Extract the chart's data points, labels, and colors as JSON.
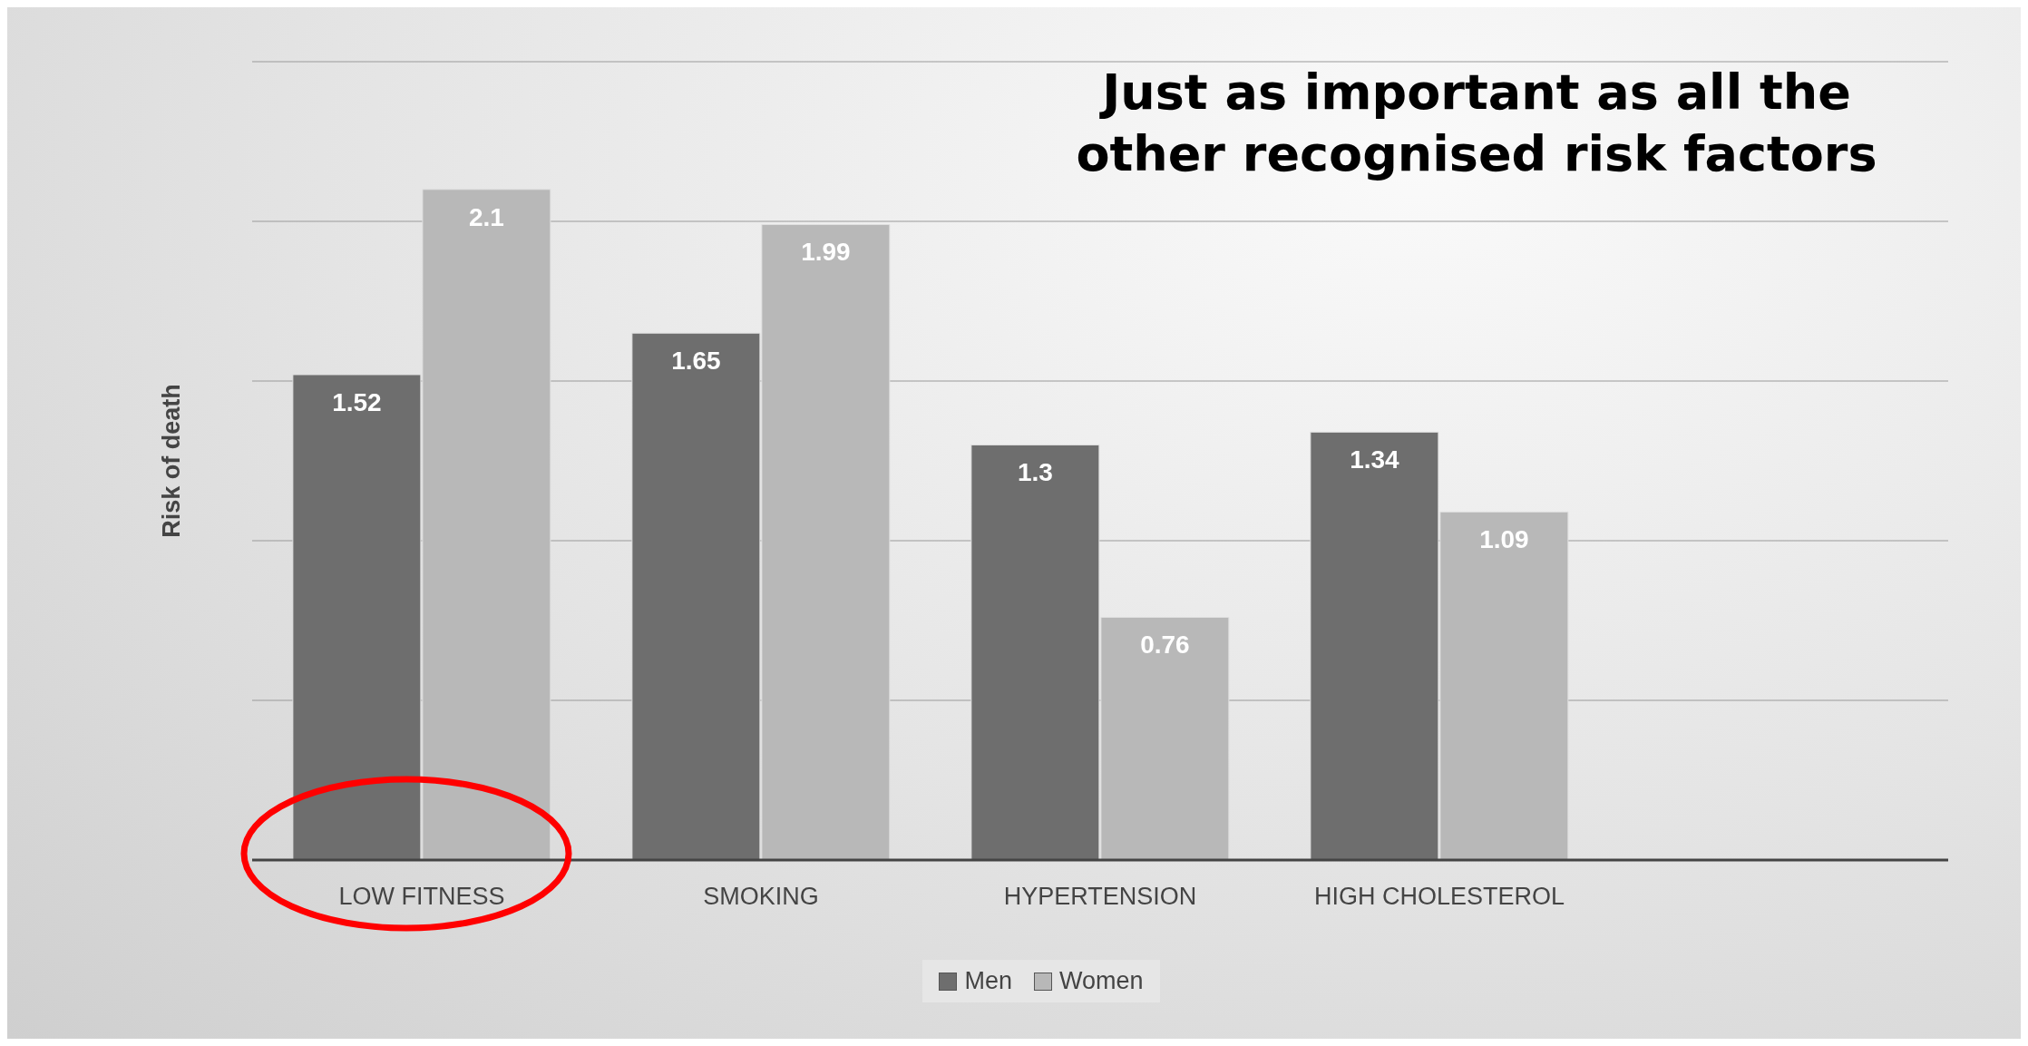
{
  "chart_data": {
    "type": "bar",
    "title": "Just as important as all the other recognised risk factors",
    "ylabel": "Risk of death",
    "categories": [
      "LOW FITNESS",
      "SMOKING",
      "HYPERTENSION",
      "HIGH CHOLESTEROL",
      null
    ],
    "series": [
      {
        "name": "Men",
        "color": "#6e6e6e",
        "values": [
          1.52,
          1.65,
          1.3,
          1.34,
          null
        ]
      },
      {
        "name": "Women",
        "color": "#b8b8b8",
        "values": [
          2.1,
          1.99,
          0.76,
          1.09,
          null
        ]
      }
    ],
    "ylim": [
      0,
      2.5
    ],
    "yticks": [
      0,
      {
        "value": 0.5,
        "label": null
      },
      {
        "value": 1,
        "label": null
      },
      {
        "value": 1.5,
        "label": null
      },
      {
        "value": 2,
        "label": null
      },
      {
        "value": 2.5,
        "label": null
      }
    ],
    "tick_labels": "x",
    "grid": "y",
    "legend": "bottom",
    "data_labels": true
  }
}
